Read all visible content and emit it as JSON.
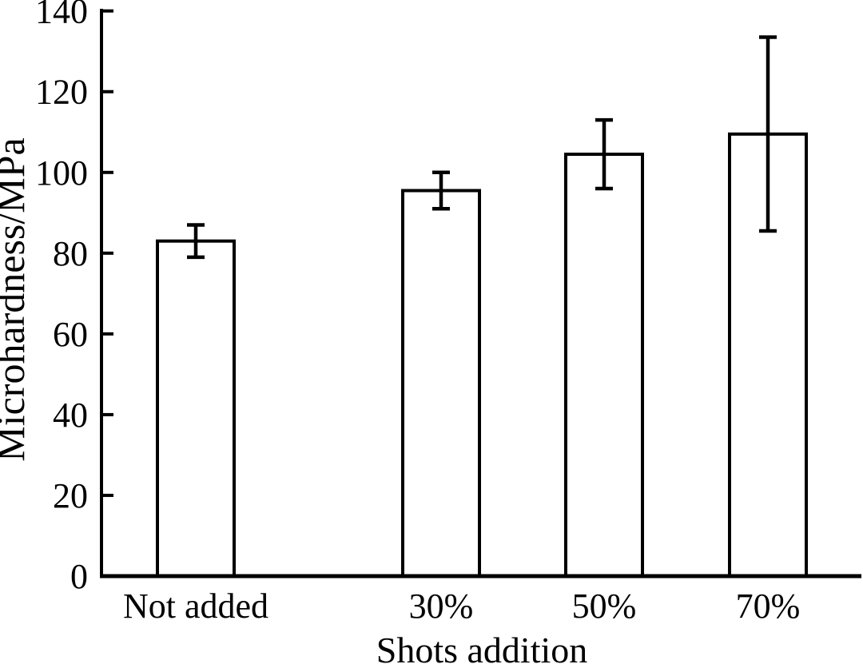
{
  "figure": {
    "background": "#ffffff",
    "ink": "#000000"
  },
  "chart_data": {
    "type": "bar",
    "title": "",
    "xlabel": "Shots addition",
    "ylabel": "Microhardness/MPa",
    "categories": [
      "Not added",
      "30%",
      "50%",
      "70%"
    ],
    "values": [
      83,
      95.5,
      104.5,
      109.5
    ],
    "error_bars": [
      4,
      4.5,
      8.5,
      24
    ],
    "ylim": [
      0,
      140
    ],
    "yticks": [
      0,
      20,
      40,
      60,
      80,
      100,
      120,
      140
    ],
    "bar_fill": "#ffffff",
    "bar_stroke": "#000000",
    "grid": false,
    "legend": "none",
    "frame": "left-bottom-axes-only"
  }
}
